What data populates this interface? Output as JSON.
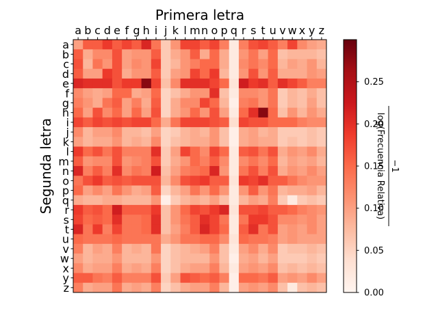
{
  "chart_data": {
    "type": "heatmap",
    "title": "Primera letra",
    "xlabel": "",
    "ylabel": "Segunda letra",
    "x_categories": [
      "a",
      "b",
      "c",
      "d",
      "e",
      "f",
      "g",
      "h",
      "i",
      "j",
      "k",
      "l",
      "m",
      "n",
      "o",
      "p",
      "q",
      "r",
      "s",
      "t",
      "u",
      "v",
      "w",
      "x",
      "y",
      "z"
    ],
    "y_categories": [
      "a",
      "b",
      "c",
      "d",
      "e",
      "f",
      "g",
      "h",
      "i",
      "j",
      "k",
      "l",
      "m",
      "n",
      "o",
      "p",
      "q",
      "r",
      "s",
      "t",
      "u",
      "v",
      "w",
      "x",
      "y",
      "z"
    ],
    "x_axis_position": "top",
    "colorbar": {
      "label_numerator": "−1",
      "label_denominator": "log(Frecuencia Relativa)",
      "range": [
        0,
        0.3
      ],
      "ticks": [
        0.0,
        0.05,
        0.1,
        0.15,
        0.2,
        0.25
      ],
      "tick_labels": [
        "0.00",
        "0.05",
        "0.10",
        "0.15",
        "0.20",
        "0.25"
      ],
      "colormap": "Reds"
    },
    "values": [
      [
        0.1,
        0.16,
        0.16,
        0.19,
        0.16,
        0.18,
        0.16,
        0.21,
        0.14,
        0.06,
        0.11,
        0.18,
        0.18,
        0.16,
        0.18,
        0.13,
        0.02,
        0.13,
        0.17,
        0.18,
        0.16,
        0.13,
        0.18,
        0.12,
        0.1,
        0.09
      ],
      [
        0.16,
        0.09,
        0.12,
        0.12,
        0.17,
        0.1,
        0.11,
        0.11,
        0.16,
        0.06,
        0.09,
        0.11,
        0.16,
        0.09,
        0.15,
        0.09,
        0.02,
        0.11,
        0.14,
        0.1,
        0.15,
        0.07,
        0.08,
        0.08,
        0.08,
        0.07
      ],
      [
        0.17,
        0.08,
        0.14,
        0.11,
        0.17,
        0.1,
        0.12,
        0.11,
        0.18,
        0.06,
        0.08,
        0.11,
        0.13,
        0.15,
        0.15,
        0.09,
        0.02,
        0.12,
        0.14,
        0.12,
        0.15,
        0.08,
        0.1,
        0.09,
        0.11,
        0.08
      ],
      [
        0.16,
        0.1,
        0.1,
        0.19,
        0.17,
        0.09,
        0.11,
        0.11,
        0.16,
        0.06,
        0.1,
        0.11,
        0.18,
        0.15,
        0.19,
        0.08,
        0.02,
        0.11,
        0.17,
        0.11,
        0.16,
        0.09,
        0.09,
        0.09,
        0.11,
        0.1
      ],
      [
        0.21,
        0.2,
        0.2,
        0.2,
        0.17,
        0.19,
        0.19,
        0.28,
        0.18,
        0.07,
        0.12,
        0.2,
        0.2,
        0.2,
        0.18,
        0.15,
        0.03,
        0.22,
        0.19,
        0.2,
        0.16,
        0.2,
        0.18,
        0.16,
        0.13,
        0.13
      ],
      [
        0.12,
        0.1,
        0.09,
        0.1,
        0.15,
        0.15,
        0.09,
        0.1,
        0.15,
        0.05,
        0.07,
        0.09,
        0.11,
        0.11,
        0.2,
        0.07,
        0.02,
        0.12,
        0.12,
        0.11,
        0.14,
        0.06,
        0.08,
        0.07,
        0.09,
        0.07
      ],
      [
        0.13,
        0.11,
        0.09,
        0.14,
        0.16,
        0.1,
        0.13,
        0.09,
        0.16,
        0.05,
        0.09,
        0.12,
        0.12,
        0.18,
        0.15,
        0.08,
        0.01,
        0.13,
        0.14,
        0.11,
        0.14,
        0.06,
        0.08,
        0.07,
        0.1,
        0.07
      ],
      [
        0.15,
        0.1,
        0.17,
        0.12,
        0.15,
        0.1,
        0.15,
        0.1,
        0.17,
        0.05,
        0.09,
        0.11,
        0.15,
        0.11,
        0.17,
        0.1,
        0.02,
        0.15,
        0.2,
        0.28,
        0.15,
        0.07,
        0.11,
        0.08,
        0.11,
        0.09
      ],
      [
        0.18,
        0.16,
        0.18,
        0.17,
        0.18,
        0.17,
        0.18,
        0.18,
        0.15,
        0.09,
        0.14,
        0.18,
        0.18,
        0.18,
        0.17,
        0.16,
        0.04,
        0.18,
        0.17,
        0.17,
        0.15,
        0.15,
        0.15,
        0.13,
        0.12,
        0.12
      ],
      [
        0.12,
        0.08,
        0.1,
        0.1,
        0.12,
        0.08,
        0.08,
        0.07,
        0.1,
        0.05,
        0.06,
        0.08,
        0.09,
        0.08,
        0.11,
        0.07,
        0.01,
        0.09,
        0.1,
        0.08,
        0.09,
        0.06,
        0.06,
        0.06,
        0.07,
        0.06
      ],
      [
        0.1,
        0.08,
        0.09,
        0.09,
        0.11,
        0.08,
        0.09,
        0.08,
        0.12,
        0.05,
        0.07,
        0.08,
        0.09,
        0.09,
        0.11,
        0.07,
        0.01,
        0.09,
        0.1,
        0.09,
        0.09,
        0.06,
        0.07,
        0.06,
        0.07,
        0.06
      ],
      [
        0.19,
        0.15,
        0.17,
        0.14,
        0.17,
        0.13,
        0.13,
        0.13,
        0.2,
        0.06,
        0.1,
        0.18,
        0.15,
        0.12,
        0.18,
        0.15,
        0.02,
        0.16,
        0.17,
        0.14,
        0.17,
        0.09,
        0.11,
        0.1,
        0.12,
        0.09
      ],
      [
        0.16,
        0.11,
        0.12,
        0.12,
        0.17,
        0.11,
        0.12,
        0.13,
        0.17,
        0.06,
        0.09,
        0.11,
        0.15,
        0.13,
        0.16,
        0.12,
        0.02,
        0.12,
        0.14,
        0.12,
        0.15,
        0.08,
        0.1,
        0.09,
        0.1,
        0.08
      ],
      [
        0.21,
        0.13,
        0.16,
        0.13,
        0.2,
        0.12,
        0.14,
        0.13,
        0.22,
        0.07,
        0.1,
        0.13,
        0.14,
        0.15,
        0.21,
        0.11,
        0.02,
        0.14,
        0.17,
        0.13,
        0.17,
        0.09,
        0.11,
        0.1,
        0.12,
        0.1
      ],
      [
        0.14,
        0.17,
        0.19,
        0.16,
        0.17,
        0.16,
        0.17,
        0.17,
        0.17,
        0.08,
        0.12,
        0.17,
        0.18,
        0.19,
        0.16,
        0.16,
        0.03,
        0.19,
        0.18,
        0.2,
        0.16,
        0.16,
        0.14,
        0.12,
        0.11,
        0.11
      ],
      [
        0.15,
        0.1,
        0.12,
        0.1,
        0.14,
        0.11,
        0.09,
        0.1,
        0.16,
        0.05,
        0.08,
        0.1,
        0.14,
        0.11,
        0.15,
        0.11,
        0.02,
        0.11,
        0.16,
        0.11,
        0.14,
        0.08,
        0.09,
        0.09,
        0.1,
        0.08
      ],
      [
        0.09,
        0.08,
        0.08,
        0.09,
        0.09,
        0.08,
        0.08,
        0.08,
        0.11,
        0.01,
        0.06,
        0.08,
        0.09,
        0.08,
        0.1,
        0.07,
        0.02,
        0.08,
        0.1,
        0.09,
        0.13,
        0.06,
        0.02,
        0.06,
        0.07,
        0.06
      ],
      [
        0.19,
        0.16,
        0.17,
        0.15,
        0.22,
        0.16,
        0.16,
        0.16,
        0.19,
        0.07,
        0.11,
        0.15,
        0.18,
        0.17,
        0.19,
        0.21,
        0.03,
        0.17,
        0.17,
        0.18,
        0.16,
        0.16,
        0.15,
        0.13,
        0.12,
        0.11
      ],
      [
        0.18,
        0.15,
        0.16,
        0.15,
        0.2,
        0.14,
        0.14,
        0.15,
        0.2,
        0.07,
        0.11,
        0.14,
        0.16,
        0.2,
        0.18,
        0.14,
        0.02,
        0.14,
        0.19,
        0.19,
        0.17,
        0.12,
        0.12,
        0.11,
        0.12,
        0.1
      ],
      [
        0.21,
        0.14,
        0.19,
        0.13,
        0.18,
        0.14,
        0.14,
        0.15,
        0.2,
        0.07,
        0.1,
        0.13,
        0.16,
        0.21,
        0.18,
        0.15,
        0.02,
        0.16,
        0.2,
        0.14,
        0.17,
        0.1,
        0.11,
        0.1,
        0.12,
        0.1
      ],
      [
        0.15,
        0.14,
        0.14,
        0.14,
        0.15,
        0.14,
        0.14,
        0.14,
        0.14,
        0.09,
        0.11,
        0.14,
        0.14,
        0.15,
        0.15,
        0.12,
        0.03,
        0.15,
        0.14,
        0.14,
        0.13,
        0.1,
        0.11,
        0.1,
        0.1,
        0.1
      ],
      [
        0.13,
        0.08,
        0.1,
        0.09,
        0.13,
        0.08,
        0.09,
        0.08,
        0.14,
        0.05,
        0.07,
        0.08,
        0.09,
        0.1,
        0.13,
        0.07,
        0.02,
        0.1,
        0.12,
        0.09,
        0.12,
        0.06,
        0.07,
        0.07,
        0.08,
        0.07
      ],
      [
        0.1,
        0.08,
        0.09,
        0.09,
        0.11,
        0.08,
        0.08,
        0.08,
        0.11,
        0.05,
        0.07,
        0.08,
        0.08,
        0.08,
        0.11,
        0.07,
        0.01,
        0.09,
        0.1,
        0.08,
        0.1,
        0.06,
        0.06,
        0.06,
        0.07,
        0.06
      ],
      [
        0.12,
        0.09,
        0.1,
        0.1,
        0.13,
        0.09,
        0.1,
        0.09,
        0.13,
        0.05,
        0.07,
        0.09,
        0.1,
        0.1,
        0.13,
        0.08,
        0.02,
        0.1,
        0.11,
        0.1,
        0.12,
        0.07,
        0.08,
        0.07,
        0.08,
        0.07
      ],
      [
        0.16,
        0.16,
        0.14,
        0.13,
        0.16,
        0.13,
        0.13,
        0.13,
        0.17,
        0.06,
        0.1,
        0.17,
        0.16,
        0.15,
        0.16,
        0.13,
        0.01,
        0.15,
        0.15,
        0.14,
        0.16,
        0.1,
        0.11,
        0.1,
        0.12,
        0.1
      ],
      [
        0.13,
        0.09,
        0.1,
        0.1,
        0.14,
        0.09,
        0.1,
        0.09,
        0.13,
        0.05,
        0.07,
        0.09,
        0.1,
        0.1,
        0.13,
        0.08,
        0.01,
        0.1,
        0.11,
        0.1,
        0.12,
        0.07,
        0.02,
        0.07,
        0.08,
        0.07
      ]
    ]
  }
}
